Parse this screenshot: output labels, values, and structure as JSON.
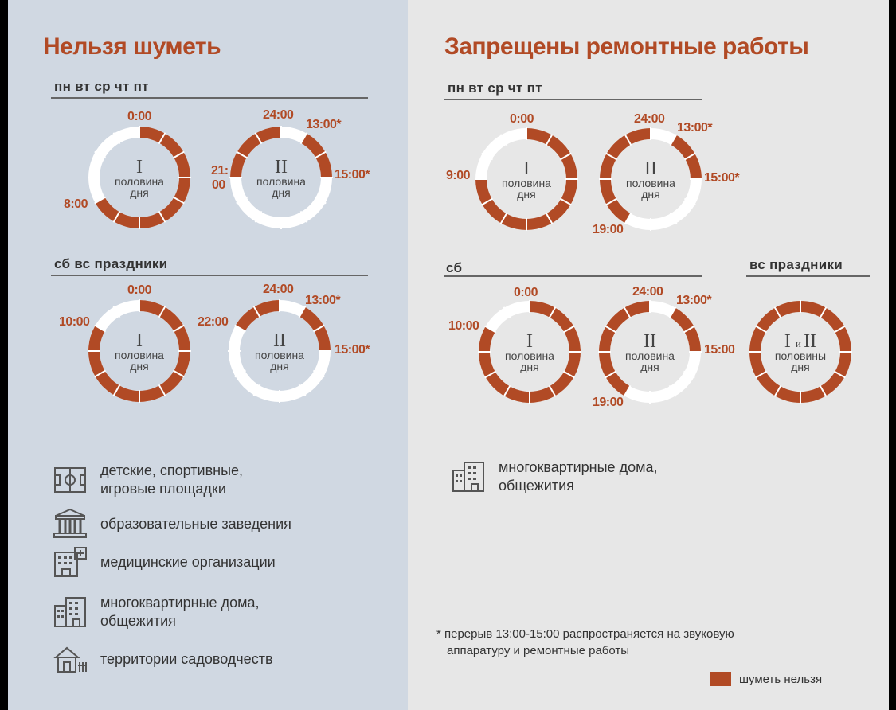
{
  "colors": {
    "accent": "#b14a25",
    "left_bg": "#d0d8e2",
    "right_bg": "#e7e7e7"
  },
  "left": {
    "title": "Нельзя шуметь",
    "weekday_label": "пн вт ср чт пт",
    "weekend_label": "сб вс праздники",
    "legend": [
      {
        "icon": "playground-icon",
        "lines": [
          "детские, спортивные,",
          "игровые площадки"
        ]
      },
      {
        "icon": "school-building-icon",
        "lines": [
          "образовательные заведения"
        ]
      },
      {
        "icon": "hospital-icon",
        "lines": [
          "медицинские организации"
        ]
      },
      {
        "icon": "apartment-building-icon",
        "lines": [
          "многоквартирные дома,",
          "общежития"
        ]
      },
      {
        "icon": "garden-house-icon",
        "lines": [
          "территории садоводчеств"
        ]
      }
    ]
  },
  "right": {
    "title": "Запрещены ремонтные работы",
    "weekday_label": "пн вт ср чт пт",
    "saturday_label": "сб",
    "sunday_label": "вс праздники",
    "legend": [
      {
        "icon": "apartment-building-icon",
        "lines": [
          "многоквартирные дома,",
          "общежития"
        ]
      }
    ],
    "footnote": [
      "* перерыв 13:00-15:00 распространяется на звуковую",
      "аппаратуру и ремонтные работы"
    ],
    "key_label": "шуметь нельзя"
  },
  "clocks": [
    {
      "id": "left-weekday-1",
      "numeral": "I",
      "center": [
        "половина",
        "дня"
      ],
      "segments": [
        [
          0,
          8
        ]
      ],
      "labels": [
        "0:00",
        "8:00"
      ]
    },
    {
      "id": "left-weekday-2",
      "numeral": "II",
      "center": [
        "половина",
        "дня"
      ],
      "segments": [
        [
          13,
          15
        ],
        [
          21,
          24
        ]
      ],
      "labels": [
        "24:00",
        "13:00*",
        "21:",
        "00",
        "15:00*"
      ]
    },
    {
      "id": "left-weekend-1",
      "numeral": "I",
      "center": [
        "половина",
        "дня"
      ],
      "segments": [
        [
          0,
          10
        ]
      ],
      "labels": [
        "0:00",
        "10:00"
      ]
    },
    {
      "id": "left-weekend-2",
      "numeral": "II",
      "center": [
        "половина",
        "дня"
      ],
      "segments": [
        [
          13,
          15
        ],
        [
          22,
          24
        ]
      ],
      "labels": [
        "24:00",
        "13:00*",
        "22:00",
        "15:00*"
      ]
    },
    {
      "id": "right-weekday-1",
      "numeral": "I",
      "center": [
        "половина",
        "дня"
      ],
      "segments": [
        [
          0,
          9
        ]
      ],
      "labels": [
        "0:00",
        "9:00"
      ]
    },
    {
      "id": "right-weekday-2",
      "numeral": "II",
      "center": [
        "половина",
        "дня"
      ],
      "segments": [
        [
          13,
          15
        ],
        [
          19,
          24
        ]
      ],
      "labels": [
        "24:00",
        "13:00*",
        "15:00*",
        "19:00"
      ]
    },
    {
      "id": "right-sat-1",
      "numeral": "I",
      "center": [
        "половина",
        "дня"
      ],
      "segments": [
        [
          0,
          10
        ]
      ],
      "labels": [
        "0:00",
        "10:00"
      ]
    },
    {
      "id": "right-sat-2",
      "numeral": "II",
      "center": [
        "половина",
        "дня"
      ],
      "segments": [
        [
          13,
          15
        ],
        [
          19,
          24
        ]
      ],
      "labels": [
        "24:00",
        "13:00*",
        "15:00",
        "19:00"
      ]
    },
    {
      "id": "right-sun",
      "numeral": "I и II",
      "center": [
        "половины",
        "дня"
      ],
      "segments": [
        [
          0,
          12
        ]
      ],
      "labels": []
    }
  ]
}
